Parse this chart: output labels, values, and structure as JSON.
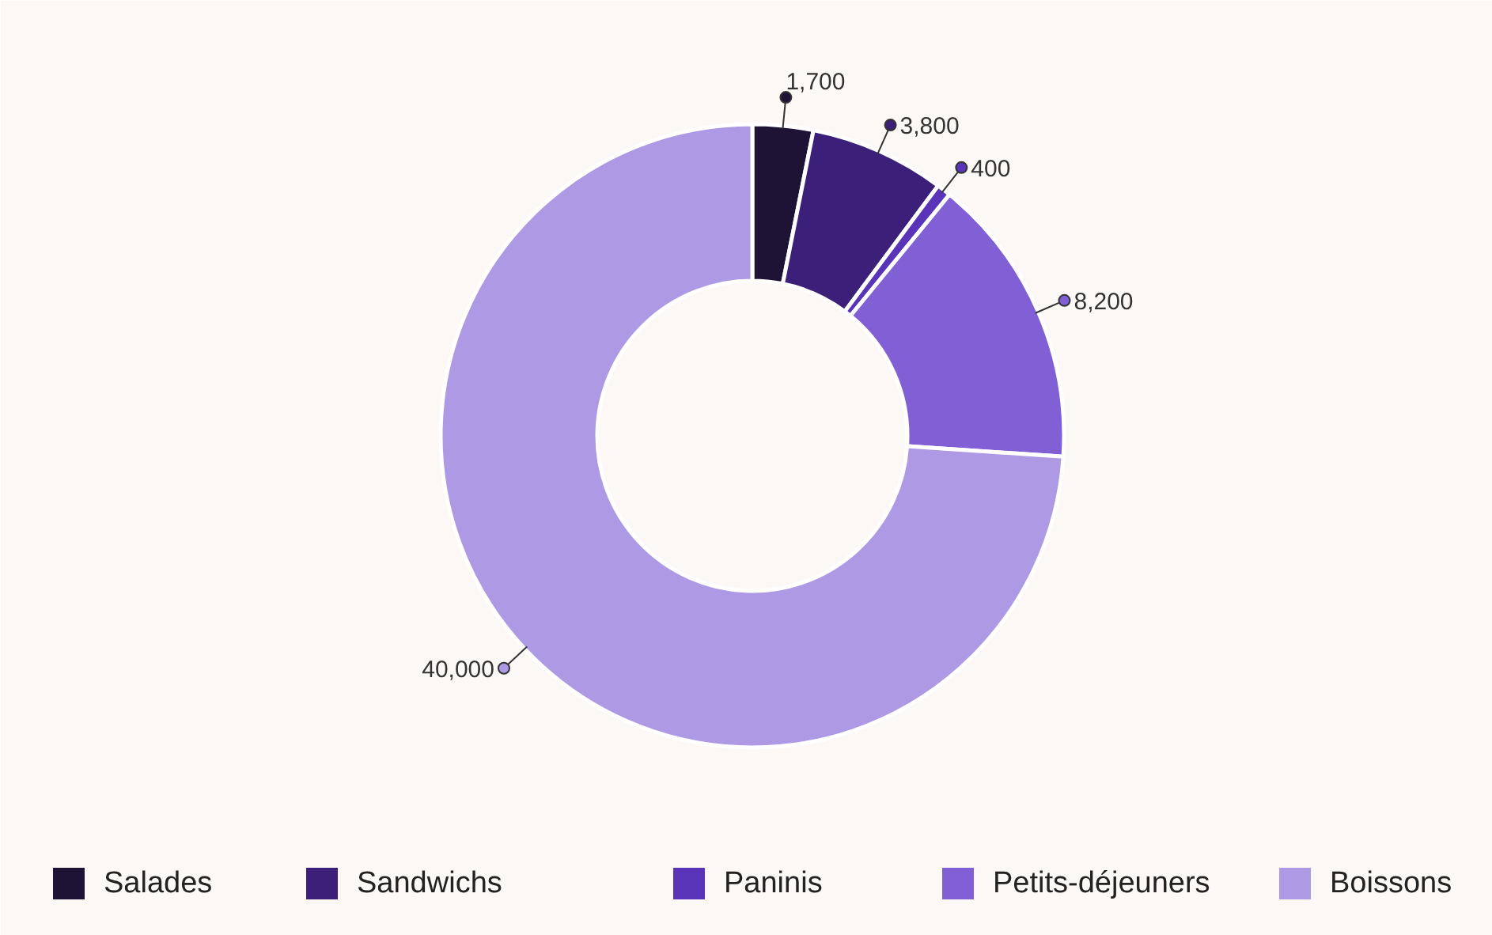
{
  "chart_data": {
    "type": "donut",
    "categories": [
      "Salades",
      "Sandwichs",
      "Paninis",
      "Petits-déjeuners",
      "Boissons"
    ],
    "values": [
      1700,
      3800,
      400,
      8200,
      40000
    ],
    "colors": [
      "#1e1235",
      "#3b1f78",
      "#5a34b8",
      "#8160d6",
      "#ae99e4"
    ],
    "value_labels": [
      "1,700",
      "3,800",
      "400",
      "8,200",
      "40,000"
    ],
    "legend": "bottom"
  }
}
